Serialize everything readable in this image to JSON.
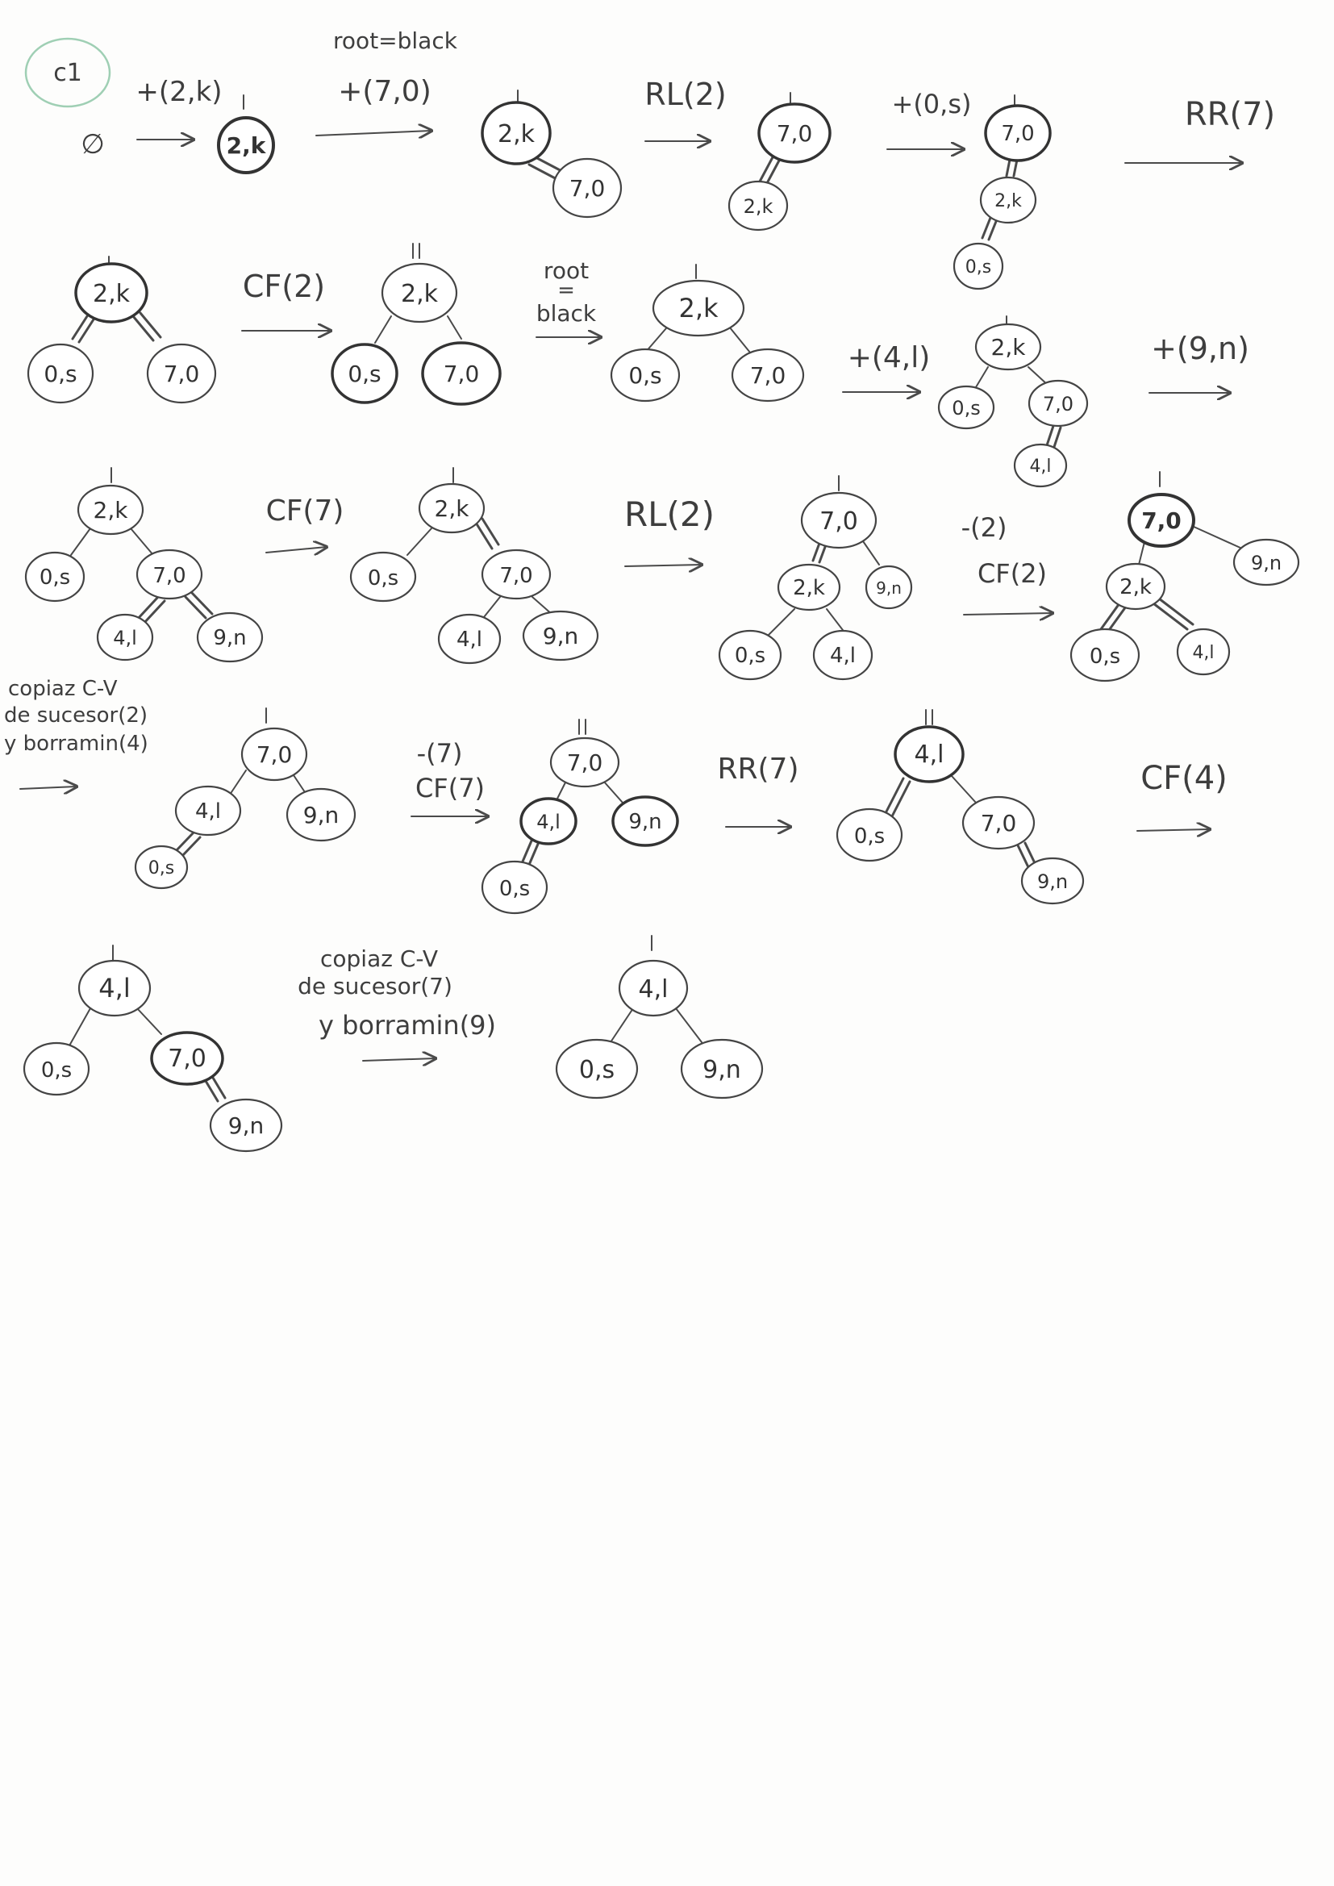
{
  "page_tag": "c1",
  "colors": {
    "ink": "#3e3e3e",
    "node_fill": "#ffffff",
    "tag_circle": "#9fcfb4"
  },
  "labels": {
    "empty": "∅",
    "op1": "+(2,k)",
    "root_note": "root=black",
    "op2": "+(7,0)",
    "op3": "RL(2)",
    "op4": "+(0,s)",
    "op5": "RR(7)",
    "op6": "CF(2)",
    "root_note2_a": "root",
    "root_note2_b": "=",
    "root_note2_c": "black",
    "op7": "+(4,l)",
    "op8": "+(9,n)",
    "op9": "CF(7)",
    "op10": "RL(2)",
    "op11a": "-(2)",
    "op11b": "CF(2)",
    "copy1_a": "copiaz C-V",
    "copy1_b": "de sucesor(2)",
    "copy1_c": "y borramin(4)",
    "op12a": "-(7)",
    "op12b": "CF(7)",
    "op13": "RR(7)",
    "op14": "CF(4)",
    "copy2_a": "copiaz C-V",
    "copy2_b": "de sucesor(7)",
    "copy2_c": "y borramin(9)"
  },
  "node_labels": {
    "k2": "2,k",
    "o7": "7,0",
    "s0": "0,s",
    "l4": "4,l",
    "n9": "9,n"
  }
}
